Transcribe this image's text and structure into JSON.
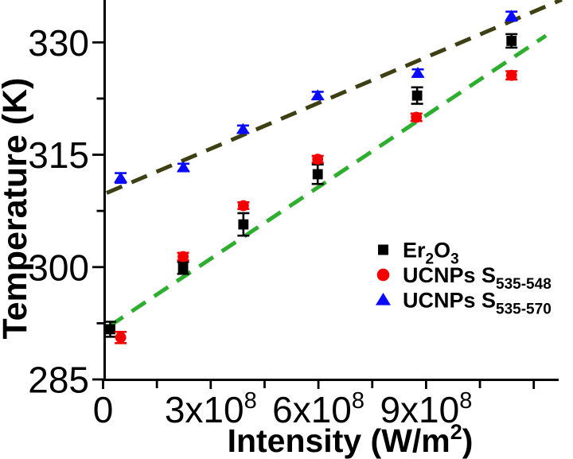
{
  "chart_data": {
    "type": "scatter",
    "title": "",
    "xlabel": "Intensity (W/m²)",
    "xlabel_parts": [
      {
        "t": "Intensity (W/m"
      },
      {
        "t": "2",
        "sup": true
      },
      {
        "t": ")"
      }
    ],
    "ylabel": "Temperature (K)",
    "x_scale_factor_note": "x values are in units of 1e8 W/m^2",
    "xlim_1e8": [
      0,
      12.7
    ],
    "ylim": [
      285,
      335.6
    ],
    "grid": false,
    "legend_position": "inside-right-middle",
    "x_major_ticks": [
      {
        "value_1e8": 0,
        "parts": [
          {
            "t": "0"
          }
        ]
      },
      {
        "value_1e8": 3,
        "parts": [
          {
            "t": "3x10"
          },
          {
            "t": "8",
            "sup": true
          }
        ]
      },
      {
        "value_1e8": 6,
        "parts": [
          {
            "t": "6x10"
          },
          {
            "t": "8",
            "sup": true
          }
        ]
      },
      {
        "value_1e8": 9,
        "parts": [
          {
            "t": "9x10"
          },
          {
            "t": "8",
            "sup": true
          }
        ]
      },
      {
        "value_1e8": 12,
        "parts": []
      }
    ],
    "x_minor_ticks_1e8": [
      1.5,
      4.5,
      7.5,
      10.5
    ],
    "y_major_ticks": [
      {
        "value": 285,
        "label": "285"
      },
      {
        "value": 300,
        "label": "300"
      },
      {
        "value": 315,
        "label": "315"
      },
      {
        "value": 330,
        "label": "330"
      }
    ],
    "y_minor_ticks": [
      292.5,
      307.5,
      322.5
    ],
    "series": [
      {
        "id": "er2o3",
        "label": "Er2O3",
        "label_parts": [
          {
            "t": "Er"
          },
          {
            "t": "2",
            "sub": true
          },
          {
            "t": "O"
          },
          {
            "t": "3",
            "sub": true
          }
        ],
        "marker": "square",
        "color": "#000000",
        "x_1e8": [
          0.2,
          2.23,
          3.91,
          5.98,
          8.75,
          11.38
        ],
        "temperature_K": [
          291.7,
          299.9,
          305.7,
          312.4,
          322.9,
          330.2
        ],
        "yerr_K": [
          1.0,
          0.8,
          1.5,
          1.3,
          1.1,
          0.9
        ]
      },
      {
        "id": "ucnps-535-548",
        "label": "UCNPs S535-548",
        "label_parts": [
          {
            "t": "UCNPs S"
          },
          {
            "t": "535-548",
            "sub": true
          }
        ],
        "marker": "circle",
        "color": "#f40000",
        "x_1e8": [
          0.49,
          2.23,
          3.91,
          5.98,
          8.73,
          11.38
        ],
        "temperature_K": [
          290.6,
          301.4,
          308.2,
          314.4,
          320.0,
          325.6
        ],
        "yerr_K": [
          0.75,
          0.5,
          0.45,
          0.45,
          0.5,
          0.55
        ]
      },
      {
        "id": "ucnps-535-570",
        "label": "UCNPs S535-570",
        "label_parts": [
          {
            "t": "UCNPs S"
          },
          {
            "t": "535-570",
            "sub": true
          }
        ],
        "marker": "triangle",
        "color": "#0a0aff",
        "x_1e8": [
          0.49,
          2.24,
          3.9,
          5.98,
          8.77,
          11.38
        ],
        "temperature_K": [
          311.9,
          313.3,
          318.4,
          322.9,
          325.9,
          333.5
        ],
        "yerr_K": [
          0.65,
          0.5,
          0.5,
          0.5,
          0.5,
          0.6
        ]
      }
    ],
    "trend_lines": [
      {
        "for": "ucnps-535-570",
        "style": "dashed",
        "color": "#3f3f14",
        "x1_1e8": 0.1,
        "y1_K": 309.9,
        "x2_1e8": 12.78,
        "y2_K": 335.7
      },
      {
        "for": "ucnps-535-548",
        "style": "dashed",
        "color": "#2eae2e",
        "x1_1e8": 0.17,
        "y1_K": 292.1,
        "x2_1e8": 12.34,
        "y2_K": 330.9
      }
    ]
  }
}
